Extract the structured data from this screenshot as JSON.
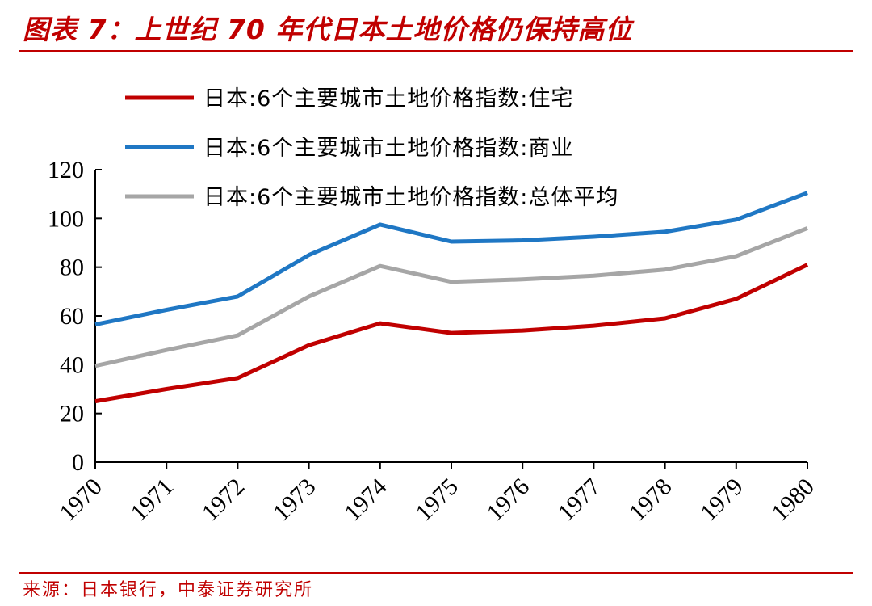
{
  "header": {
    "title": "图表 7：上世纪 70 年代日本土地价格仍保持高位"
  },
  "footer": {
    "source": "来源：日本银行，中泰证券研究所"
  },
  "colors": {
    "brand": "#c00000",
    "residential": "#c00000",
    "commercial": "#1f77c4",
    "average": "#a6a6a6"
  },
  "chart_data": {
    "type": "line",
    "categories": [
      "1970",
      "1971",
      "1972",
      "1973",
      "1974",
      "1975",
      "1976",
      "1977",
      "1978",
      "1979",
      "1980"
    ],
    "ylim": [
      0,
      120
    ],
    "yticks": [
      0,
      20,
      40,
      60,
      80,
      100,
      120
    ],
    "grid": false,
    "legend_position": "top-left",
    "series": [
      {
        "name": "日本:6个主要城市土地价格指数:住宅",
        "color": "#c00000",
        "values": [
          25,
          30,
          34.5,
          48,
          57,
          53,
          54,
          56,
          59,
          67,
          81
        ]
      },
      {
        "name": "日本:6个主要城市土地价格指数:商业",
        "color": "#1f77c4",
        "values": [
          56.5,
          62.5,
          68,
          85,
          97.5,
          90.5,
          91,
          92.5,
          94.5,
          99.5,
          110.5
        ]
      },
      {
        "name": "日本:6个主要城市土地价格指数:总体平均",
        "color": "#a6a6a6",
        "values": [
          39.5,
          46,
          52,
          68,
          80.5,
          74,
          75,
          76.5,
          79,
          84.5,
          96
        ]
      }
    ]
  }
}
